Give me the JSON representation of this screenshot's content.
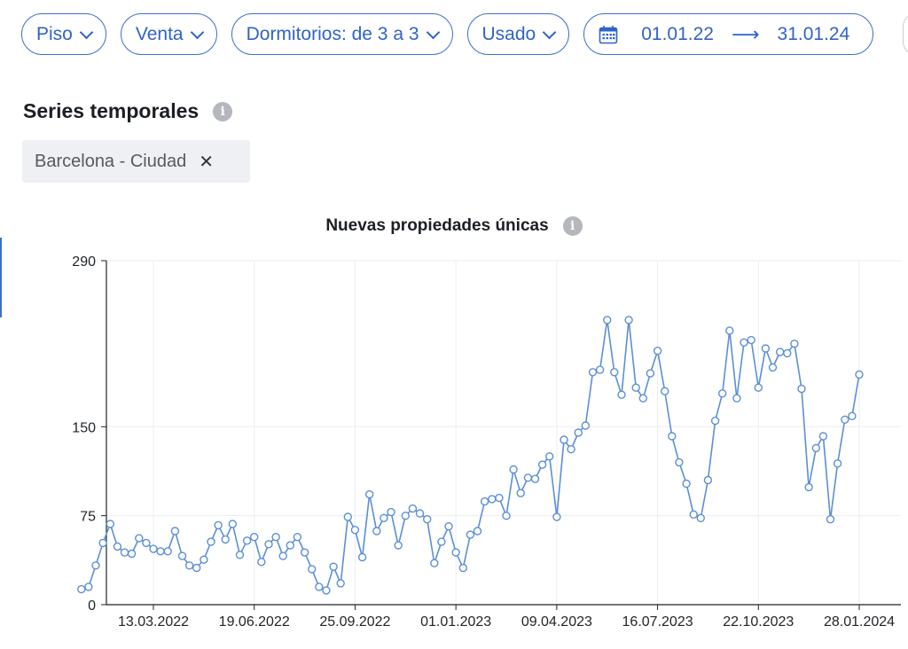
{
  "filters": {
    "property_type": "Piso",
    "operation": "Venta",
    "bedrooms": "Dormitorios: de 3 a 3",
    "condition": "Usado",
    "date_from": "01.01.22",
    "date_to": "31.01.24"
  },
  "section_title": "Series temporales",
  "selected_chip": "Barcelona - Ciudad",
  "colors": {
    "accent": "#3a6fd0",
    "line": "#5b8fd6"
  },
  "chart_data": {
    "type": "line",
    "title": "Nuevas propiedades únicas",
    "xlabel": "",
    "ylabel": "",
    "ylim": [
      0,
      290
    ],
    "yticks": [
      0,
      75,
      150,
      290
    ],
    "xticks": [
      "13.03.2022",
      "19.06.2022",
      "25.09.2022",
      "01.01.2023",
      "09.04.2023",
      "16.07.2023",
      "22.10.2023",
      "28.01.2024"
    ],
    "grid": true,
    "series": [
      {
        "name": "",
        "x": [
          "02.01.2022",
          "09.01.2022",
          "16.01.2022",
          "23.01.2022",
          "30.01.2022",
          "06.02.2022",
          "13.02.2022",
          "20.02.2022",
          "27.02.2022",
          "06.03.2022",
          "13.03.2022",
          "20.03.2022",
          "27.03.2022",
          "03.04.2022",
          "10.04.2022",
          "17.04.2022",
          "24.04.2022",
          "01.05.2022",
          "08.05.2022",
          "15.05.2022",
          "22.05.2022",
          "29.05.2022",
          "05.06.2022",
          "12.06.2022",
          "19.06.2022",
          "26.06.2022",
          "03.07.2022",
          "10.07.2022",
          "17.07.2022",
          "24.07.2022",
          "31.07.2022",
          "07.08.2022",
          "14.08.2022",
          "21.08.2022",
          "28.08.2022",
          "04.09.2022",
          "11.09.2022",
          "18.09.2022",
          "25.09.2022",
          "02.10.2022",
          "09.10.2022",
          "16.10.2022",
          "23.10.2022",
          "30.10.2022",
          "06.11.2022",
          "13.11.2022",
          "20.11.2022",
          "27.11.2022",
          "04.12.2022",
          "11.12.2022",
          "18.12.2022",
          "25.12.2022",
          "01.01.2023",
          "08.01.2023",
          "15.01.2023",
          "22.01.2023",
          "29.01.2023",
          "05.02.2023",
          "12.02.2023",
          "19.02.2023",
          "26.02.2023",
          "05.03.2023",
          "12.03.2023",
          "19.03.2023",
          "26.03.2023",
          "02.04.2023",
          "09.04.2023",
          "16.04.2023",
          "23.04.2023",
          "30.04.2023",
          "07.05.2023",
          "14.05.2023",
          "21.05.2023",
          "28.05.2023",
          "04.06.2023",
          "11.06.2023",
          "18.06.2023",
          "25.06.2023",
          "02.07.2023",
          "09.07.2023",
          "16.07.2023",
          "23.07.2023",
          "30.07.2023",
          "06.08.2023",
          "13.08.2023",
          "20.08.2023",
          "27.08.2023",
          "03.09.2023",
          "10.09.2023",
          "17.09.2023",
          "24.09.2023",
          "01.10.2023",
          "08.10.2023",
          "15.10.2023",
          "22.10.2023",
          "29.10.2023",
          "05.11.2023",
          "12.11.2023",
          "19.11.2023",
          "26.11.2023",
          "03.12.2023",
          "10.12.2023",
          "17.12.2023",
          "24.12.2023",
          "31.12.2023",
          "07.01.2024",
          "14.01.2024",
          "21.01.2024",
          "28.01.2024"
        ],
        "values": [
          13,
          15,
          33,
          52,
          68,
          49,
          44,
          43,
          56,
          52,
          47,
          45,
          45,
          62,
          41,
          33,
          31,
          38,
          53,
          67,
          55,
          68,
          42,
          54,
          57,
          36,
          51,
          57,
          41,
          50,
          57,
          44,
          30,
          15,
          12,
          32,
          18,
          74,
          63,
          40,
          93,
          62,
          73,
          78,
          50,
          75,
          81,
          77,
          72,
          35,
          53,
          66,
          44,
          31,
          59,
          62,
          87,
          89,
          90,
          75,
          114,
          94,
          107,
          106,
          118,
          125,
          74,
          139,
          131,
          145,
          151,
          196,
          198,
          240,
          196,
          177,
          240,
          183,
          174,
          195,
          214,
          180,
          142,
          120,
          102,
          76,
          73,
          105,
          155,
          178,
          231,
          174,
          221,
          223,
          183,
          216,
          200,
          213,
          212,
          220,
          182,
          99,
          132,
          142,
          72,
          119,
          156,
          159,
          194
        ]
      }
    ]
  }
}
